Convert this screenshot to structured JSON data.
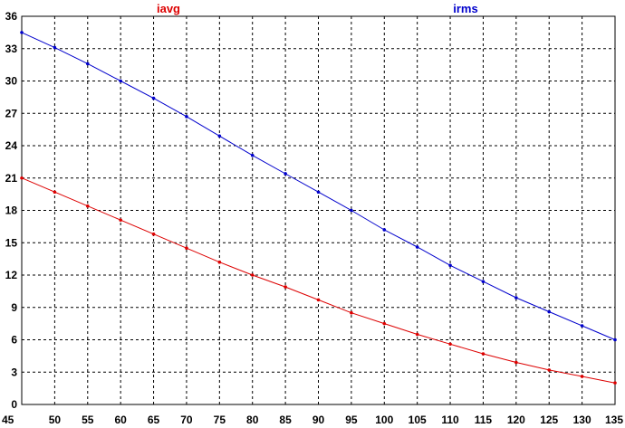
{
  "chart_data": {
    "type": "line",
    "x": [
      45,
      50,
      55,
      60,
      65,
      70,
      75,
      80,
      85,
      90,
      95,
      100,
      105,
      110,
      115,
      120,
      125,
      130,
      135
    ],
    "xlim": [
      45,
      135
    ],
    "ylim": [
      0,
      36
    ],
    "x_ticks": [
      "45",
      "50",
      "55",
      "60",
      "65",
      "70",
      "75",
      "80",
      "85",
      "90",
      "95",
      "100",
      "105",
      "110",
      "115",
      "120",
      "125",
      "130",
      "135"
    ],
    "y_ticks": [
      "0",
      "3",
      "6",
      "9",
      "12",
      "15",
      "18",
      "21",
      "24",
      "27",
      "30",
      "33",
      "36"
    ],
    "grid": true,
    "grid_style": "dashed",
    "legend_placement": "top",
    "series": [
      {
        "name": "iavg",
        "color": "#dd0000",
        "values": [
          21.0,
          19.7,
          18.4,
          17.1,
          15.8,
          14.5,
          13.2,
          12.0,
          10.9,
          9.7,
          8.5,
          7.5,
          6.5,
          5.6,
          4.7,
          3.9,
          3.2,
          2.6,
          2.0
        ]
      },
      {
        "name": "irms",
        "color": "#0000cc",
        "values": [
          34.5,
          33.1,
          31.6,
          30.0,
          28.4,
          26.7,
          24.9,
          23.1,
          21.4,
          19.7,
          18.0,
          16.2,
          14.6,
          12.9,
          11.4,
          9.9,
          8.6,
          7.3,
          6.0
        ]
      }
    ]
  }
}
